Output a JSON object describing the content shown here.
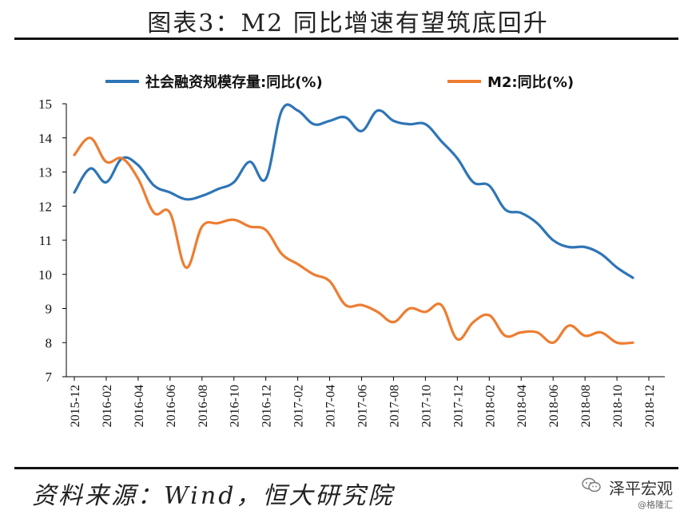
{
  "header": {
    "title": "图表3：M2 同比增速有望筑底回升"
  },
  "footer": {
    "source": "资料来源：Wind，恒大研究院"
  },
  "watermark": {
    "brand": "泽平宏观",
    "sub": "@格隆汇",
    "icon": "wechat-icon"
  },
  "chart_data": {
    "type": "line",
    "title": "",
    "xlabel": "",
    "ylabel": "",
    "ylim": [
      7,
      15
    ],
    "yticks": [
      7,
      8,
      9,
      10,
      11,
      12,
      13,
      14,
      15
    ],
    "x_ticks": [
      "2015-12",
      "2016-02",
      "2016-04",
      "2016-06",
      "2016-08",
      "2016-10",
      "2016-12",
      "2017-02",
      "2017-04",
      "2017-06",
      "2017-08",
      "2017-10",
      "2017-12",
      "2018-02",
      "2018-04",
      "2018-06",
      "2018-08",
      "2018-10",
      "2018-12"
    ],
    "grid": false,
    "legend": "top",
    "x": [
      "2015-12",
      "2016-01",
      "2016-02",
      "2016-03",
      "2016-04",
      "2016-05",
      "2016-06",
      "2016-07",
      "2016-08",
      "2016-09",
      "2016-10",
      "2016-11",
      "2016-12",
      "2017-01",
      "2017-02",
      "2017-03",
      "2017-04",
      "2017-05",
      "2017-06",
      "2017-07",
      "2017-08",
      "2017-09",
      "2017-10",
      "2017-11",
      "2017-12",
      "2018-01",
      "2018-02",
      "2018-03",
      "2018-04",
      "2018-05",
      "2018-06",
      "2018-07",
      "2018-08",
      "2018-09",
      "2018-10",
      "2018-11"
    ],
    "series": [
      {
        "name": "社会融资规模存量:同比(%)",
        "color": "#2e75b6",
        "values": [
          12.4,
          13.1,
          12.7,
          13.4,
          13.2,
          12.6,
          12.4,
          12.2,
          12.3,
          12.5,
          12.7,
          13.3,
          12.8,
          14.8,
          14.8,
          14.4,
          14.5,
          14.6,
          14.2,
          14.8,
          14.5,
          14.4,
          14.4,
          13.9,
          13.4,
          12.7,
          12.6,
          11.9,
          11.8,
          11.5,
          11.0,
          10.8,
          10.8,
          10.6,
          10.2,
          9.9
        ]
      },
      {
        "name": "M2:同比(%)",
        "color": "#ed7d31",
        "values": [
          13.5,
          14.0,
          13.3,
          13.4,
          12.8,
          11.8,
          11.8,
          10.2,
          11.4,
          11.5,
          11.6,
          11.4,
          11.3,
          10.6,
          10.3,
          10.0,
          9.8,
          9.1,
          9.1,
          8.9,
          8.6,
          9.0,
          8.9,
          9.1,
          8.1,
          8.6,
          8.8,
          8.2,
          8.3,
          8.3,
          8.0,
          8.5,
          8.2,
          8.3,
          8.0,
          8.0
        ]
      }
    ]
  }
}
